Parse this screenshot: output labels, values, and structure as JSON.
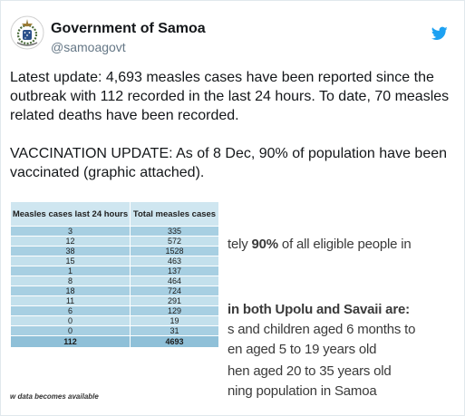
{
  "tweet": {
    "display_name": "Government of Samoa",
    "handle": "@samoagovt",
    "paragraphs": [
      "Latest update: 4,693 measles cases have been reported since the outbreak with 112 recorded in the last 24 hours. To date, 70 measles related deaths have been recorded.",
      "VACCINATION UPDATE: As of 8 Dec, 90% of population have been vaccinated (graphic attached)."
    ],
    "icons": {
      "avatar": "samoa-coat-of-arms-icon",
      "platform": "twitter-bird-icon"
    },
    "colors": {
      "twitter_blue": "#1da1f2",
      "table_header": "#cfe6f0",
      "table_row": "#a7cfe2"
    }
  },
  "media": {
    "table": {
      "headers": [
        "Measles cases last 24 hours",
        "Total measles cases"
      ],
      "rows": [
        [
          "3",
          "335"
        ],
        [
          "12",
          "572"
        ],
        [
          "38",
          "1528"
        ],
        [
          "15",
          "463"
        ],
        [
          "1",
          "137"
        ],
        [
          "8",
          "464"
        ],
        [
          "18",
          "724"
        ],
        [
          "11",
          "291"
        ],
        [
          "6",
          "129"
        ],
        [
          "0",
          "19"
        ],
        [
          "0",
          "31"
        ]
      ],
      "total": [
        "112",
        "4693"
      ]
    },
    "footnote": "w data becomes available",
    "snippets": {
      "s1_pre": "tely ",
      "s1_bold": "90%",
      "s1_post": " of all eligible people in",
      "s2": "in both Upolu and Savaii are:",
      "s3": "s and children aged 6 months to",
      "s4": "en aged 5 to 19 years old",
      "s5": "hen aged 20 to 35 years old",
      "s6": "ning population in Samoa"
    }
  }
}
